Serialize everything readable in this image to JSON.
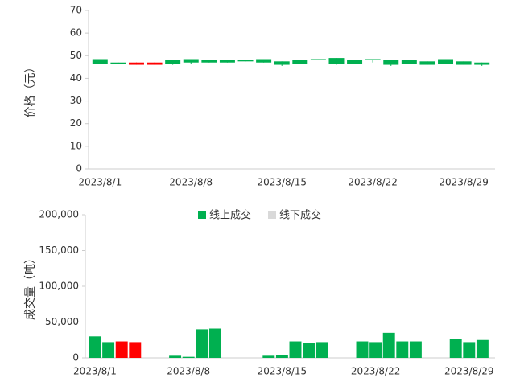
{
  "chart_data": [
    {
      "type": "candlestick",
      "ylabel": "价格（元）",
      "categories": [
        "2023/8/1",
        null,
        null,
        null,
        null,
        "2023/8/8",
        null,
        null,
        null,
        null,
        "2023/8/15",
        null,
        null,
        null,
        null,
        "2023/8/22",
        null,
        null,
        null,
        null,
        "2023/8/29",
        null
      ],
      "open": [
        48.5,
        47.0,
        46.0,
        46.0,
        48.0,
        48.5,
        48.0,
        48.0,
        48.0,
        48.5,
        47.5,
        48.0,
        48.5,
        49.0,
        48.0,
        48.5,
        48.0,
        48.0,
        47.5,
        48.5,
        47.5,
        47.0
      ],
      "close": [
        46.5,
        46.5,
        47.0,
        47.0,
        46.5,
        47.0,
        47.0,
        47.0,
        47.5,
        47.0,
        46.0,
        46.5,
        48.0,
        46.5,
        46.5,
        48.0,
        46.0,
        46.5,
        46.0,
        46.5,
        46.0,
        46.0
      ],
      "high": [
        48.5,
        47.0,
        47.0,
        47.0,
        48.0,
        48.5,
        48.0,
        48.0,
        48.0,
        48.5,
        47.5,
        48.0,
        48.5,
        49.0,
        48.0,
        48.5,
        48.0,
        48.0,
        47.5,
        48.5,
        47.5,
        47.0
      ],
      "low": [
        46.5,
        46.5,
        46.0,
        46.0,
        46.0,
        46.5,
        47.0,
        47.0,
        47.5,
        47.0,
        45.5,
        46.5,
        48.0,
        46.0,
        46.5,
        47.0,
        45.5,
        46.5,
        46.0,
        46.5,
        46.0,
        45.5
      ],
      "up_color": "#ff0000",
      "down_color": "#00b050",
      "ylim": [
        0,
        70
      ],
      "yticks": [
        0,
        10,
        20,
        30,
        40,
        50,
        60,
        70
      ]
    },
    {
      "type": "bar",
      "ylabel": "成交量（吨）",
      "legend": "top",
      "categories": [
        "2023/8/1",
        null,
        null,
        null,
        null,
        null,
        null,
        "2023/8/8",
        null,
        null,
        null,
        null,
        null,
        null,
        "2023/8/15",
        null,
        null,
        null,
        null,
        null,
        null,
        "2023/8/22",
        null,
        null,
        null,
        null,
        null,
        null,
        "2023/8/29",
        null
      ],
      "series": [
        {
          "name": "线上成交",
          "color": "#00b050",
          "values": [
            30000,
            22000,
            23000,
            22000,
            null,
            null,
            3000,
            1500,
            40000,
            41000,
            null,
            null,
            null,
            3000,
            4000,
            23000,
            21000,
            22000,
            null,
            null,
            23000,
            22000,
            35000,
            23000,
            23000,
            null,
            null,
            26000,
            22000,
            25000
          ],
          "colors": [
            "#00b050",
            "#00b050",
            "#ff0000",
            "#ff0000",
            null,
            null,
            "#00b050",
            "#00b050",
            "#00b050",
            "#00b050",
            null,
            null,
            null,
            "#00b050",
            "#00b050",
            "#00b050",
            "#00b050",
            "#00b050",
            null,
            null,
            "#00b050",
            "#00b050",
            "#00b050",
            "#00b050",
            "#00b050",
            null,
            null,
            "#00b050",
            "#00b050",
            "#00b050"
          ]
        },
        {
          "name": "线下成交",
          "color": "#d9d9d9",
          "values": [
            null,
            null,
            null,
            null,
            null,
            null,
            null,
            null,
            null,
            null,
            null,
            null,
            null,
            null,
            null,
            null,
            null,
            null,
            null,
            null,
            null,
            null,
            null,
            null,
            null,
            null,
            null,
            null,
            null,
            null
          ]
        }
      ],
      "ylim": [
        0,
        200000
      ],
      "yticks": [
        0,
        {
          "value": 50000,
          "label": "50,000"
        },
        {
          "value": 100000,
          "label": "100,000"
        },
        {
          "value": 150000,
          "label": "150,000"
        },
        {
          "value": 200000,
          "label": "200,000"
        }
      ]
    }
  ]
}
